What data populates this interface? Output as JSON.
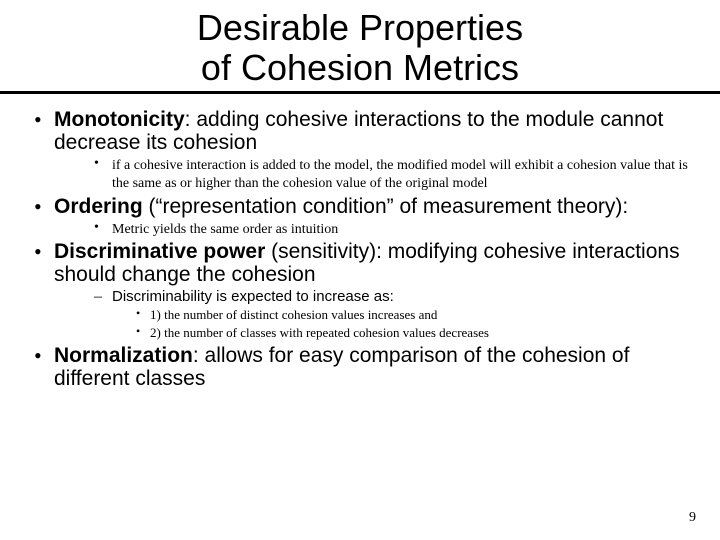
{
  "title": {
    "line1": "Desirable Properties",
    "line2": "of Cohesion Metrics"
  },
  "bullets": [
    {
      "term": "Monotonicity",
      "rest": ": adding cohesive interactions to the module cannot decrease its cohesion",
      "sub_style": "dot-serif",
      "subs": [
        {
          "text": "if a cohesive interaction is added to the model, the modified model will exhibit a cohesion value that is the same as or higher than the cohesion value of the original model"
        }
      ]
    },
    {
      "term": "Ordering",
      "rest": " (“representation condition” of measurement theory):",
      "sub_style": "dot-serif",
      "subs": [
        {
          "text": "Metric yields the same order as intuition"
        }
      ]
    },
    {
      "term": "Discriminative power",
      "rest": " (sensitivity): modifying cohesive interactions should change the cohesion",
      "sub_style": "dash-sans",
      "subs": [
        {
          "text": "Discriminability is expected to increase as:",
          "subs": [
            {
              "text": "1) the number of distinct cohesion values increases and"
            },
            {
              "text": "2) the number of classes with repeated cohesion values decreases"
            }
          ]
        }
      ]
    },
    {
      "term": "Normalization",
      "rest": ": allows for easy comparison of the cohesion of different classes",
      "subs": []
    }
  ],
  "page_number": "9"
}
